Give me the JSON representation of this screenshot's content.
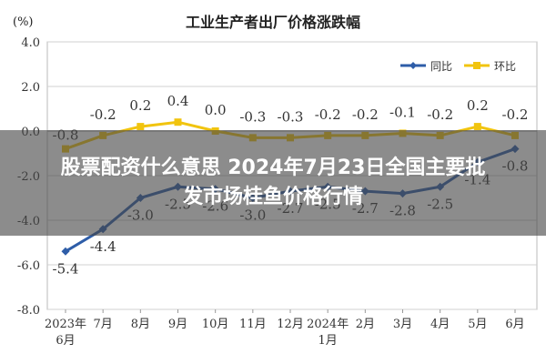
{
  "banner": {
    "line1": "股票配资什么意思 2024年7月23日全国主要批",
    "line2": "发市场桂鱼价格行情"
  },
  "chart_data": {
    "type": "line",
    "title": "工业生产者出厂价格涨跌幅",
    "ylabel": "(%)",
    "xlabel": "",
    "ylim": [
      -8.0,
      4.0
    ],
    "yticks": [
      "4.0",
      "2.0",
      "0.0",
      "-2.0",
      "-4.0",
      "-6.0",
      "-8.0"
    ],
    "categories": [
      [
        "2023年",
        "6月"
      ],
      [
        "7月"
      ],
      [
        "8月"
      ],
      [
        "9月"
      ],
      [
        "10月"
      ],
      [
        "11月"
      ],
      [
        "12月"
      ],
      [
        "2024年",
        "1月"
      ],
      [
        "2月"
      ],
      [
        "3月"
      ],
      [
        "4月"
      ],
      [
        "5月"
      ],
      [
        "6月"
      ]
    ],
    "grid": true,
    "legend_position": "top-right",
    "series": [
      {
        "name": "同比",
        "color": "#2e5da8",
        "values": [
          -5.4,
          -4.4,
          -3.0,
          -2.5,
          -2.6,
          -3.0,
          -2.7,
          -2.5,
          -2.7,
          -2.8,
          -2.5,
          -1.4,
          -0.8
        ],
        "labels": [
          "-5.4",
          "-4.4",
          "-3.0",
          "-2.5",
          "-2.6",
          "-3.0",
          "-2.7",
          "-2.5",
          "-2.7",
          "-2.8",
          "-2.5",
          "-1.4",
          "-0.8"
        ]
      },
      {
        "name": "环比",
        "color": "#f1c40f",
        "values": [
          -0.8,
          -0.2,
          0.2,
          0.4,
          0.0,
          -0.3,
          -0.3,
          -0.2,
          -0.2,
          -0.1,
          -0.2,
          0.2,
          -0.2
        ],
        "labels": [
          "-0.8",
          "-0.2",
          "0.2",
          "0.4",
          "0.0",
          "-0.3",
          "-0.3",
          "-0.2",
          "-0.2",
          "-0.1",
          "-0.2",
          "0.2",
          "-0.2"
        ]
      }
    ]
  }
}
